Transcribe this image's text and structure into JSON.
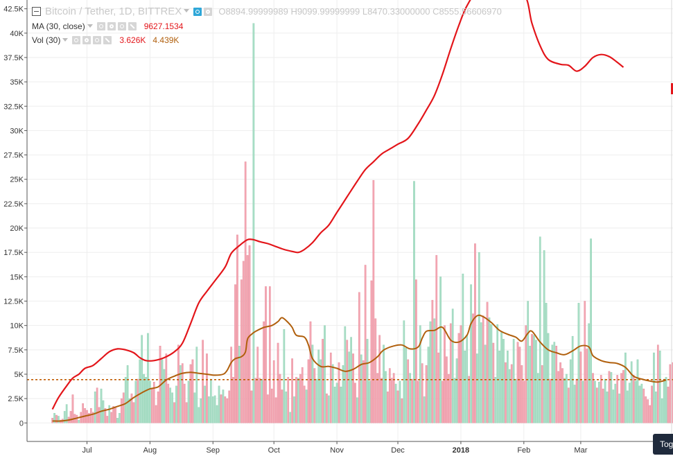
{
  "header": {
    "symbol": "Bitcoin / Tether, 1D, BITTREX",
    "open_label": "O",
    "open_value": "8894.99999989",
    "high_label": "H",
    "high_value": "9099.99999999",
    "low_label": "L",
    "low_value": "8470.33000000",
    "close_label": "C",
    "close_value": "8555.56606970"
  },
  "legend": {
    "ma_name": "MA (30, close)",
    "ma_value": "9627.1534",
    "vol_name": "Vol (30)",
    "vol_value": "3.626K",
    "vol_ma_value": "4.439K"
  },
  "toggle_label": "Tog",
  "colors": {
    "ma_line": "#e3151a",
    "vol_ma_line": "#b05f0c",
    "up_bar": "#a9dec6",
    "down_bar": "#f4a7b3",
    "ref_line": "#c05a00",
    "grid": "#eeeeee",
    "axis": "#555555"
  },
  "chart_data": {
    "type": "bar",
    "y_axis": {
      "ticks": [
        "0",
        "2.5K",
        "5K",
        "7.5K",
        "10K",
        "12.5K",
        "15K",
        "17.5K",
        "20K",
        "22.5K",
        "25K",
        "27.5K",
        "30K",
        "32.5K",
        "35K",
        "37.5K",
        "40K",
        "42.5K"
      ],
      "tick_values": [
        0,
        2500,
        5000,
        7500,
        10000,
        12500,
        15000,
        17500,
        20000,
        22500,
        25000,
        27500,
        30000,
        32500,
        35000,
        37500,
        40000,
        42500
      ],
      "ylim": [
        -1900,
        43400
      ]
    },
    "x_axis": {
      "labels": [
        "Jul",
        "Aug",
        "Sep",
        "Oct",
        "Nov",
        "Dec",
        "2018",
        "Feb",
        "Mar"
      ],
      "label_days": [
        17,
        48,
        79,
        109,
        140,
        170,
        201,
        232,
        260
      ],
      "xlim": [
        -12.5,
        305.4
      ]
    },
    "grid": true,
    "reference_line": 4439,
    "volume_bars_up": [
      false,
      true,
      false,
      true,
      false,
      false,
      true,
      true,
      false,
      false,
      false,
      false,
      false,
      true,
      false,
      false,
      false,
      false,
      false,
      false,
      false,
      true,
      false,
      false,
      true,
      true,
      false,
      false,
      true,
      false,
      false,
      false,
      true,
      true,
      false,
      false,
      true,
      true,
      true,
      false,
      false,
      true,
      false,
      true,
      true,
      true,
      true,
      true,
      true,
      false,
      false,
      false,
      false,
      false,
      true,
      true,
      false,
      false,
      true,
      true,
      false,
      true,
      false,
      true,
      false,
      false,
      false,
      true,
      false,
      false,
      true,
      true,
      true,
      true,
      false,
      true,
      false,
      true,
      true,
      true,
      true,
      true,
      true,
      false,
      true,
      false,
      false,
      false,
      false,
      false,
      false,
      false,
      true,
      false,
      false,
      false,
      false,
      false,
      false,
      true,
      false,
      false,
      false,
      true,
      false,
      false,
      false,
      false,
      false,
      false,
      false,
      false,
      false,
      false,
      true,
      true,
      false,
      true,
      false,
      true,
      false,
      true,
      false,
      false,
      false,
      true,
      false,
      false,
      true,
      false,
      true,
      true,
      true,
      false,
      true,
      false,
      true,
      false,
      true,
      true,
      true,
      false,
      true,
      true,
      true,
      false,
      true,
      true,
      false,
      false,
      true,
      false,
      true,
      false,
      false,
      true,
      true,
      false,
      false,
      false,
      false,
      false,
      false,
      true,
      true,
      false,
      false,
      false,
      false,
      true,
      false,
      true,
      false,
      true,
      true,
      false,
      true,
      false,
      true,
      false,
      false,
      true,
      false,
      true,
      false,
      true,
      true,
      false,
      true,
      false,
      false,
      true,
      false,
      false,
      false,
      false,
      false,
      true,
      true,
      true,
      false,
      false,
      true,
      true,
      true,
      false,
      true,
      false,
      false,
      true,
      true,
      true,
      false,
      true,
      false,
      true,
      true,
      false,
      true,
      true,
      true,
      true,
      true,
      false,
      true,
      true,
      false,
      true,
      true,
      false,
      false,
      false,
      false,
      false,
      true,
      true,
      false,
      true,
      true,
      true,
      true,
      false,
      true,
      true,
      true,
      false,
      true,
      true,
      false,
      false,
      false,
      false,
      true,
      true,
      false,
      true,
      true,
      true,
      false,
      true,
      false,
      true,
      false,
      false,
      true,
      true,
      false,
      true,
      false,
      true,
      false,
      false,
      true,
      true,
      false,
      true,
      true,
      true,
      false,
      true,
      false,
      false,
      true,
      true,
      true,
      true,
      false,
      true,
      true,
      true,
      true,
      false,
      false,
      false,
      false,
      false,
      true,
      true,
      false,
      true,
      true,
      true,
      true,
      false
    ],
    "volume_values": [
      500,
      1000,
      800,
      700,
      300,
      400,
      1200,
      1900,
      600,
      1200,
      2900,
      900,
      800,
      300,
      1100,
      2000,
      1500,
      1300,
      1000,
      1500,
      1100,
      3200,
      3600,
      1600,
      3500,
      2300,
      1500,
      700,
      1800,
      1100,
      1700,
      1600,
      500,
      1000,
      2500,
      3100,
      4700,
      5900,
      2500,
      3000,
      2100,
      4300,
      4500,
      6500,
      9000,
      5000,
      4700,
      9200,
      4300,
      3500,
      4200,
      1800,
      3200,
      7900,
      6500,
      5500,
      7100,
      4000,
      3600,
      3100,
      2100,
      3800,
      8000,
      5900,
      6100,
      4000,
      2100,
      4300,
      6000,
      6500,
      3100,
      7800,
      1600,
      2500,
      8500,
      3800,
      7100,
      2700,
      4500,
      2700,
      2800,
      1800,
      3800,
      2900,
      3400,
      2700,
      2500,
      3300,
      7800,
      4700,
      14200,
      19300,
      7900,
      14700,
      16600,
      26800,
      17200,
      18200,
      3300,
      41000,
      4600,
      7800,
      4600,
      4500,
      10400,
      14000,
      2900,
      14000,
      3500,
      6400,
      2600,
      8200,
      5000,
      3400,
      9600,
      3200,
      4700,
      1100,
      6600,
      2700,
      4700,
      4600,
      5000,
      5700,
      3800,
      3400,
      6500,
      10400,
      8000,
      5600,
      4500,
      7500,
      6500,
      8600,
      10000,
      3000,
      2800,
      7200,
      6000,
      3700,
      4100,
      6200,
      3700,
      5900,
      9900,
      8500,
      7300,
      8800,
      7100,
      4100,
      2600,
      13400,
      7000,
      6400,
      16200,
      8600,
      4300,
      14600,
      24900,
      10700,
      5100,
      9000,
      4600,
      8000,
      5300,
      3200,
      5600,
      4600,
      5100,
      4000,
      3300,
      4300,
      2500,
      10500,
      7700,
      6500,
      5100,
      4500,
      24800,
      14700,
      4300,
      10000,
      6100,
      2700,
      5900,
      7800,
      10400,
      12600,
      10700,
      17200,
      7200,
      15000,
      4300,
      10000,
      6800,
      5000,
      10200,
      11700,
      4600,
      6600,
      9200,
      10000,
      15300,
      7400,
      9000,
      4800,
      14200,
      11200,
      18400,
      7100,
      17500,
      10300,
      11000,
      8000,
      12400,
      10800,
      10100,
      8200,
      4700,
      10100,
      7400,
      9300,
      8600,
      6200,
      7400,
      5500,
      6000,
      8600,
      4500,
      8300,
      7800,
      5900,
      4300,
      10000,
      12500,
      7900,
      9100,
      9000,
      8500,
      5100,
      19100,
      5900,
      17700,
      12300,
      9200,
      4500,
      8000,
      8300,
      7900,
      5300,
      6200,
      5600,
      4600,
      5000,
      3600,
      6500,
      8900,
      3900,
      4500,
      12300,
      7300,
      4300,
      12500,
      7600,
      10200,
      18900,
      5100,
      4300,
      3600,
      4200,
      4900,
      3500,
      4500,
      3200,
      5300,
      5200,
      3400,
      4000,
      4900,
      3000,
      5100,
      5400,
      7200,
      3300,
      4100,
      6300,
      4900,
      4300,
      6500,
      3800,
      4000,
      3500,
      2700,
      2400,
      1800,
      3800,
      7200,
      3200,
      8000,
      7400,
      2500,
      4500,
      4700,
      3700,
      6000,
      6200,
      4700,
      3200,
      7300,
      5600,
      5000,
      3600
    ],
    "series": [
      {
        "name": "MA (30, close)",
        "points": [
          [
            0,
            1400
          ],
          [
            3,
            2600
          ],
          [
            7,
            3800
          ],
          [
            10,
            4600
          ],
          [
            13,
            5000
          ],
          [
            16,
            5600
          ],
          [
            20,
            5900
          ],
          [
            24,
            6600
          ],
          [
            28,
            7300
          ],
          [
            32,
            7600
          ],
          [
            36,
            7500
          ],
          [
            40,
            7200
          ],
          [
            43,
            6700
          ],
          [
            46,
            6400
          ],
          [
            50,
            6400
          ],
          [
            55,
            6700
          ],
          [
            60,
            7300
          ],
          [
            64,
            8200
          ],
          [
            68,
            10200
          ],
          [
            72,
            12300
          ],
          [
            76,
            13500
          ],
          [
            80,
            14600
          ],
          [
            85,
            16000
          ],
          [
            88,
            17400
          ],
          [
            92,
            18200
          ],
          [
            96,
            18800
          ],
          [
            99,
            18800
          ],
          [
            102,
            18600
          ],
          [
            106,
            18400
          ],
          [
            110,
            18100
          ],
          [
            114,
            17800
          ],
          [
            118,
            17600
          ],
          [
            121,
            17500
          ],
          [
            124,
            17800
          ],
          [
            128,
            18500
          ],
          [
            132,
            19500
          ],
          [
            136,
            20300
          ],
          [
            140,
            21600
          ],
          [
            145,
            23200
          ],
          [
            150,
            24800
          ],
          [
            154,
            26000
          ],
          [
            158,
            26800
          ],
          [
            162,
            27600
          ],
          [
            166,
            28100
          ],
          [
            170,
            28600
          ],
          [
            175,
            29200
          ],
          [
            180,
            30700
          ],
          [
            184,
            32100
          ],
          [
            188,
            33600
          ],
          [
            192,
            35800
          ],
          [
            196,
            38400
          ],
          [
            200,
            40800
          ],
          [
            204,
            42800
          ],
          [
            210,
            44500
          ],
          [
            220,
            44800
          ],
          [
            232,
            44000
          ],
          [
            236,
            41000
          ],
          [
            240,
            38700
          ],
          [
            244,
            37300
          ],
          [
            250,
            36800
          ],
          [
            254,
            36700
          ],
          [
            258,
            36100
          ],
          [
            262,
            36600
          ],
          [
            266,
            37500
          ],
          [
            270,
            37800
          ],
          [
            274,
            37600
          ],
          [
            278,
            37000
          ],
          [
            281,
            36500
          ]
        ]
      },
      {
        "name": "Vol (30)",
        "points": [
          [
            0,
            200
          ],
          [
            4,
            200
          ],
          [
            8,
            300
          ],
          [
            12,
            500
          ],
          [
            16,
            700
          ],
          [
            20,
            900
          ],
          [
            24,
            1200
          ],
          [
            28,
            1400
          ],
          [
            32,
            1700
          ],
          [
            36,
            2000
          ],
          [
            40,
            2600
          ],
          [
            44,
            3100
          ],
          [
            48,
            3500
          ],
          [
            52,
            3700
          ],
          [
            56,
            4400
          ],
          [
            60,
            4800
          ],
          [
            64,
            5100
          ],
          [
            68,
            5200
          ],
          [
            72,
            5100
          ],
          [
            76,
            5000
          ],
          [
            80,
            4900
          ],
          [
            84,
            5000
          ],
          [
            86,
            5400
          ],
          [
            88,
            6200
          ],
          [
            90,
            6600
          ],
          [
            93,
            6800
          ],
          [
            95,
            7300
          ],
          [
            96,
            8600
          ],
          [
            98,
            9100
          ],
          [
            100,
            9400
          ],
          [
            104,
            9800
          ],
          [
            108,
            10000
          ],
          [
            111,
            10400
          ],
          [
            113,
            10800
          ],
          [
            116,
            10300
          ],
          [
            118,
            9800
          ],
          [
            120,
            9000
          ],
          [
            124,
            8800
          ],
          [
            126,
            8000
          ],
          [
            128,
            6600
          ],
          [
            132,
            5800
          ],
          [
            136,
            5800
          ],
          [
            140,
            5600
          ],
          [
            144,
            5300
          ],
          [
            148,
            5500
          ],
          [
            152,
            6000
          ],
          [
            156,
            6200
          ],
          [
            160,
            6800
          ],
          [
            162,
            7300
          ],
          [
            164,
            7600
          ],
          [
            168,
            7900
          ],
          [
            172,
            8000
          ],
          [
            176,
            7600
          ],
          [
            180,
            7800
          ],
          [
            182,
            8700
          ],
          [
            184,
            9400
          ],
          [
            188,
            9500
          ],
          [
            192,
            9800
          ],
          [
            196,
            8500
          ],
          [
            200,
            8300
          ],
          [
            204,
            9000
          ],
          [
            206,
            10200
          ],
          [
            209,
            11000
          ],
          [
            212,
            10900
          ],
          [
            216,
            10300
          ],
          [
            220,
            9500
          ],
          [
            224,
            9100
          ],
          [
            228,
            8800
          ],
          [
            231,
            8400
          ],
          [
            234,
            9200
          ],
          [
            236,
            9400
          ],
          [
            240,
            8300
          ],
          [
            244,
            7500
          ],
          [
            248,
            7200
          ],
          [
            252,
            7000
          ],
          [
            256,
            7400
          ],
          [
            260,
            7900
          ],
          [
            264,
            7800
          ],
          [
            266,
            6900
          ],
          [
            270,
            6400
          ],
          [
            274,
            6200
          ],
          [
            278,
            6100
          ],
          [
            282,
            5700
          ],
          [
            286,
            4800
          ],
          [
            290,
            4500
          ],
          [
            294,
            4300
          ],
          [
            298,
            4200
          ],
          [
            302,
            4400
          ]
        ]
      }
    ]
  }
}
